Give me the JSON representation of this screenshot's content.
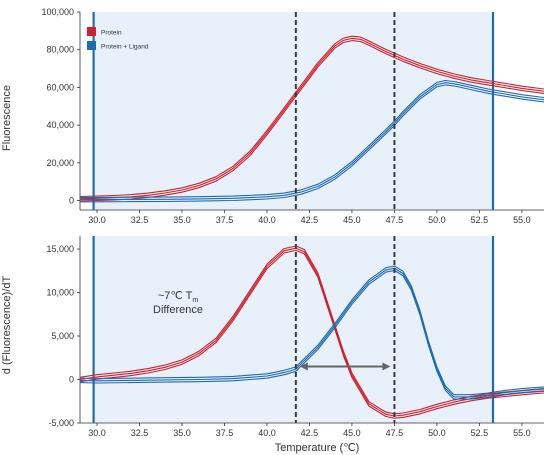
{
  "colors": {
    "protein": "#d0202e",
    "ligand": "#1f6bb0",
    "shade": "#e8f1fa",
    "dashed": "#3a3a3a",
    "axis": "#333333",
    "grid_bg": "#ffffff"
  },
  "chart_data": [
    {
      "type": "line",
      "ylabel": "Fluorescence",
      "xlim": [
        29,
        56.3
      ],
      "ylim": [
        -5000,
        100000
      ],
      "x_ticks": [
        30.0,
        32.5,
        35.0,
        37.5,
        40.0,
        42.5,
        45.0,
        47.5,
        50.0,
        52.5,
        55.0
      ],
      "x_tick_labels": [
        "30.0",
        "32.5",
        "35.0",
        "37.5",
        "40.0",
        "42.5",
        "45.0",
        "47.5",
        "50.0",
        "52.5",
        "55.0"
      ],
      "y_ticks": [
        0,
        20000,
        40000,
        60000,
        80000,
        100000
      ],
      "y_tick_labels": [
        "0",
        "20,000",
        "40,000",
        "60,000",
        "80,000",
        "100,000"
      ],
      "legend": {
        "position": "top-left",
        "items": [
          "Protein",
          "Protein + Ligand"
        ]
      },
      "shaded_region": [
        29.8,
        53.3
      ],
      "dashed_lines": [
        41.7,
        47.5
      ],
      "series": [
        {
          "name": "Protein",
          "x": [
            29,
            30,
            31,
            32,
            33,
            34,
            35,
            36,
            37,
            38,
            39,
            40,
            41,
            42,
            43,
            44,
            44.5,
            45,
            45.5,
            46,
            47,
            48,
            49,
            50,
            51,
            52,
            53,
            54,
            55,
            56.3
          ],
          "values": [
            1000,
            1200,
            1500,
            2000,
            2800,
            4000,
            5600,
            8000,
            11500,
            17000,
            25000,
            36000,
            48000,
            60000,
            72000,
            82000,
            85000,
            86000,
            85500,
            83500,
            79000,
            75000,
            71500,
            68500,
            66000,
            64000,
            62500,
            61000,
            59500,
            58000
          ]
        },
        {
          "name": "Protein + Ligand",
          "x": [
            29,
            30,
            32,
            34,
            36,
            38,
            40,
            41,
            42,
            43,
            44,
            45,
            46,
            47,
            47.5,
            48,
            49,
            50,
            50.5,
            51,
            52,
            53,
            54,
            55,
            56.3
          ],
          "values": [
            500,
            500,
            600,
            700,
            900,
            1200,
            2000,
            2800,
            4500,
            7500,
            12500,
            19500,
            28000,
            36500,
            41000,
            46000,
            55000,
            61500,
            62500,
            62000,
            60000,
            58000,
            56500,
            55000,
            53500
          ]
        }
      ]
    },
    {
      "type": "line",
      "xlabel": "Temperature (℃)",
      "ylabel": "d (Fluorescence)/dT",
      "xlim": [
        29,
        56.3
      ],
      "ylim": [
        -5000,
        16500
      ],
      "x_ticks": [
        30.0,
        32.5,
        35.0,
        37.5,
        40.0,
        42.5,
        45.0,
        47.5,
        50.0,
        52.5,
        55.0
      ],
      "x_tick_labels": [
        "30.0",
        "32.5",
        "35.0",
        "37.5",
        "40.0",
        "42.5",
        "45.0",
        "47.5",
        "50.0",
        "52.5",
        "55.0"
      ],
      "y_ticks": [
        -5000,
        0,
        5000,
        10000,
        15000
      ],
      "y_tick_labels": [
        "-5,000",
        "0",
        "5,000",
        "10,000",
        "15,000"
      ],
      "shaded_region": [
        29.8,
        53.3
      ],
      "dashed_lines": [
        41.7,
        47.5
      ],
      "annotation": {
        "line1": "~7℃ T",
        "sub": "m",
        "line2": "Difference"
      },
      "arrow": [
        41.7,
        47.5
      ],
      "arrow_y": 1500,
      "series": [
        {
          "name": "Protein",
          "x": [
            29,
            30,
            31,
            32,
            33,
            34,
            35,
            36,
            37,
            38,
            39,
            40,
            41,
            41.7,
            42.2,
            43,
            44,
            44.5,
            45,
            46,
            47,
            47.5,
            48,
            49,
            50,
            51,
            52,
            53,
            54,
            55,
            56.3
          ],
          "values": [
            0,
            300,
            500,
            700,
            1000,
            1400,
            2000,
            3000,
            4500,
            7000,
            10000,
            13000,
            14800,
            15100,
            14700,
            12000,
            6000,
            3000,
            500,
            -2800,
            -4000,
            -4200,
            -4100,
            -3700,
            -3100,
            -2600,
            -2200,
            -1900,
            -1700,
            -1500,
            -1300
          ]
        },
        {
          "name": "Protein + Ligand",
          "x": [
            29,
            30,
            32,
            34,
            36,
            38,
            40,
            41,
            41.7,
            42,
            43,
            44,
            45,
            46,
            47,
            47.5,
            48,
            48.5,
            49,
            49.5,
            50,
            50.5,
            51,
            52,
            53,
            54,
            55,
            56.3
          ],
          "values": [
            -100,
            -150,
            -100,
            -50,
            0,
            100,
            400,
            800,
            1200,
            1800,
            3700,
            6200,
            8900,
            11200,
            12600,
            12800,
            12200,
            10500,
            7700,
            4200,
            1200,
            -1000,
            -2000,
            -2000,
            -1800,
            -1500,
            -1300,
            -1100
          ]
        }
      ]
    }
  ]
}
